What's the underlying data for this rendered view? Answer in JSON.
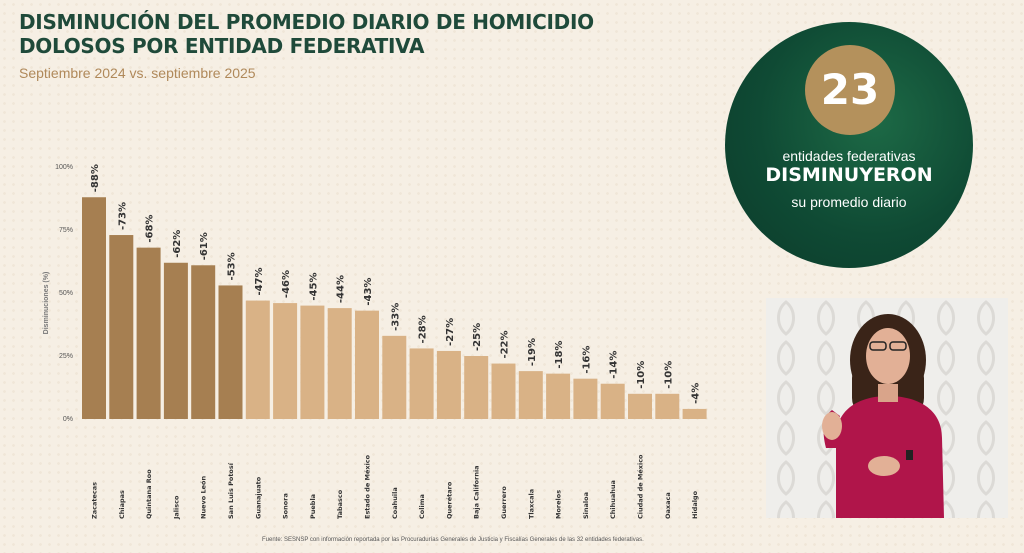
{
  "header": {
    "title": "DISMINUCIÓN DEL PROMEDIO DIARIO DE HOMICIDIO DOLOSOS POR ENTIDAD FEDERATIVA",
    "subtitle": "Septiembre 2024 vs. septiembre 2025"
  },
  "chart_data": {
    "type": "bar",
    "ylabel": "Disminuciones (%)",
    "ylim": [
      0,
      100
    ],
    "yticks": [
      "0%",
      "25%",
      "50%",
      "75%",
      "100%"
    ],
    "categories": [
      "Zacatecas",
      "Chiapas",
      "Quintana Roo",
      "Jalisco",
      "Nuevo León",
      "San Luis Potosí",
      "Guanajuato",
      "Sonora",
      "Puebla",
      "Tabasco",
      "Estado de México",
      "Coahuila",
      "Colima",
      "Querétaro",
      "Baja California",
      "Guerrero",
      "Tlaxcala",
      "Morelos",
      "Sinaloa",
      "Chihuahua",
      "Ciudad de México",
      "Oaxaca",
      "Hidalgo"
    ],
    "values": [
      88,
      73,
      68,
      62,
      61,
      53,
      47,
      46,
      45,
      44,
      43,
      33,
      28,
      27,
      25,
      22,
      19,
      18,
      16,
      14,
      10,
      10,
      4
    ],
    "value_labels": [
      "-88%",
      "-73%",
      "-68%",
      "-62%",
      "-61%",
      "-53%",
      "-47%",
      "-46%",
      "-45%",
      "-44%",
      "-43%",
      "-33%",
      "-28%",
      "-27%",
      "-25%",
      "-22%",
      "-19%",
      "-18%",
      "-16%",
      "-14%",
      "-10%",
      "-10%",
      "-4%"
    ],
    "colors": {
      "dark_bars": "#a67f51",
      "light_bars": "#d9b286"
    },
    "dark_bar_count": 6
  },
  "source": "Fuente: SESNSP con información reportada por las Procuradurías Generales de Justicia y Fiscalías Generales de las 32 entidades federativas.",
  "badge": {
    "number": "23",
    "line1": "entidades federativas",
    "line2": "DISMINUYERON",
    "line3": "su promedio diario"
  }
}
